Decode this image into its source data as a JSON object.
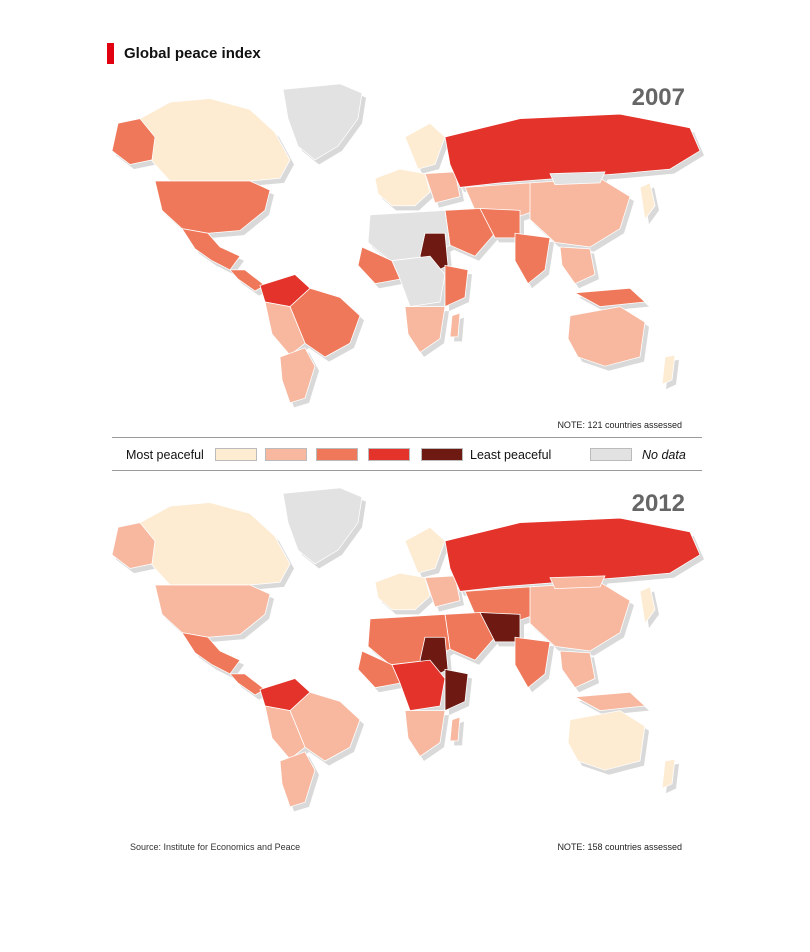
{
  "title": "Global peace index",
  "colors": {
    "level1": "#fdebd2",
    "level2": "#f8b8a0",
    "level3": "#f0785a",
    "level4": "#e3332a",
    "level5": "#6e1a12",
    "nodata": "#e2e2e2",
    "accent": "#e1000f"
  },
  "maps": [
    {
      "year": "2007",
      "note": "NOTE: 121 countries assessed"
    },
    {
      "year": "2012",
      "note": "NOTE: 158 countries assessed"
    }
  ],
  "legend": {
    "most": "Most peaceful",
    "least": "Least peaceful",
    "nodata": "No data"
  },
  "source": "Source: Institute for Economics and Peace"
}
